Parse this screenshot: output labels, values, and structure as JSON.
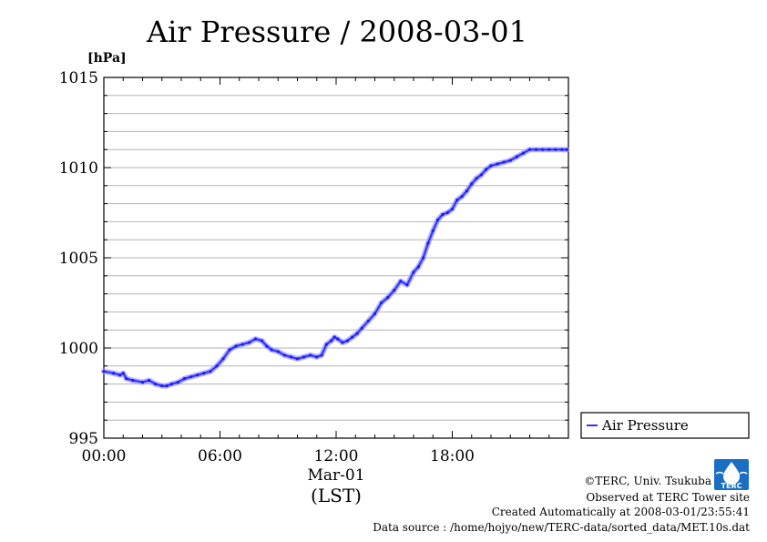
{
  "chart_data": {
    "type": "line",
    "title": "Air Pressure / 2008-03-01",
    "ylabel": "[hPa]",
    "xlabel_date": "Mar-01",
    "xlabel_tz": "(LST)",
    "ylim": [
      995,
      1015
    ],
    "xlim": [
      "00:00",
      "24:00"
    ],
    "yticks": [
      995,
      1000,
      1005,
      1010,
      1015
    ],
    "xticks": [
      "00:00",
      "06:00",
      "12:00",
      "18:00"
    ],
    "grid": true,
    "legend_position": "right",
    "series": [
      {
        "name": "Air Pressure",
        "color": "#3333ff",
        "x": [
          "00:00",
          "00:30",
          "00:50",
          "01:00",
          "01:10",
          "01:30",
          "02:00",
          "02:20",
          "02:40",
          "03:00",
          "03:15",
          "03:30",
          "03:50",
          "04:10",
          "04:30",
          "04:50",
          "05:10",
          "05:30",
          "05:50",
          "06:10",
          "06:30",
          "06:50",
          "07:10",
          "07:30",
          "07:50",
          "08:10",
          "08:25",
          "08:40",
          "09:00",
          "09:20",
          "09:40",
          "10:00",
          "10:20",
          "10:40",
          "11:00",
          "11:15",
          "11:30",
          "11:45",
          "11:55",
          "12:05",
          "12:20",
          "12:35",
          "12:50",
          "13:05",
          "13:20",
          "13:40",
          "14:00",
          "14:20",
          "14:40",
          "15:00",
          "15:20",
          "15:40",
          "16:00",
          "16:15",
          "16:30",
          "16:45",
          "17:00",
          "17:15",
          "17:30",
          "17:45",
          "18:00",
          "18:15",
          "18:30",
          "18:45",
          "19:00",
          "19:15",
          "19:30",
          "19:45",
          "20:00",
          "20:20",
          "20:40",
          "21:00",
          "21:20",
          "21:40",
          "22:00",
          "22:20",
          "22:40",
          "23:00",
          "23:20",
          "23:40",
          "23:55"
        ],
        "values": [
          998.7,
          998.6,
          998.5,
          998.6,
          998.3,
          998.2,
          998.1,
          998.2,
          998.0,
          997.9,
          997.9,
          998.0,
          998.1,
          998.3,
          998.4,
          998.5,
          998.6,
          998.7,
          999.0,
          999.4,
          999.9,
          1000.1,
          1000.2,
          1000.3,
          1000.5,
          1000.4,
          1000.1,
          999.9,
          999.8,
          999.6,
          999.5,
          999.4,
          999.5,
          999.6,
          999.5,
          999.6,
          1000.2,
          1000.4,
          1000.6,
          1000.5,
          1000.3,
          1000.4,
          1000.6,
          1000.8,
          1001.1,
          1001.5,
          1001.9,
          1002.5,
          1002.8,
          1003.2,
          1003.7,
          1003.5,
          1004.2,
          1004.5,
          1005.0,
          1005.8,
          1006.5,
          1007.1,
          1007.4,
          1007.5,
          1007.7,
          1008.2,
          1008.4,
          1008.7,
          1009.1,
          1009.4,
          1009.6,
          1009.9,
          1010.1,
          1010.2,
          1010.3,
          1010.4,
          1010.6,
          1010.8,
          1011.0,
          1011.0,
          1011.0,
          1011.0,
          1011.0,
          1011.0,
          1011.0
        ]
      }
    ]
  },
  "credits": {
    "copyright": "©TERC, Univ. Tsukuba",
    "observed": "Observed at TERC Tower site",
    "created": "Created Automatically at 2008-03-01/23:55:41",
    "source": "Data source : /home/hojyo/new/TERC-data/sorted_data/MET.10s.dat"
  },
  "logo": {
    "text": "TERC",
    "color": "#1a6fc4"
  }
}
